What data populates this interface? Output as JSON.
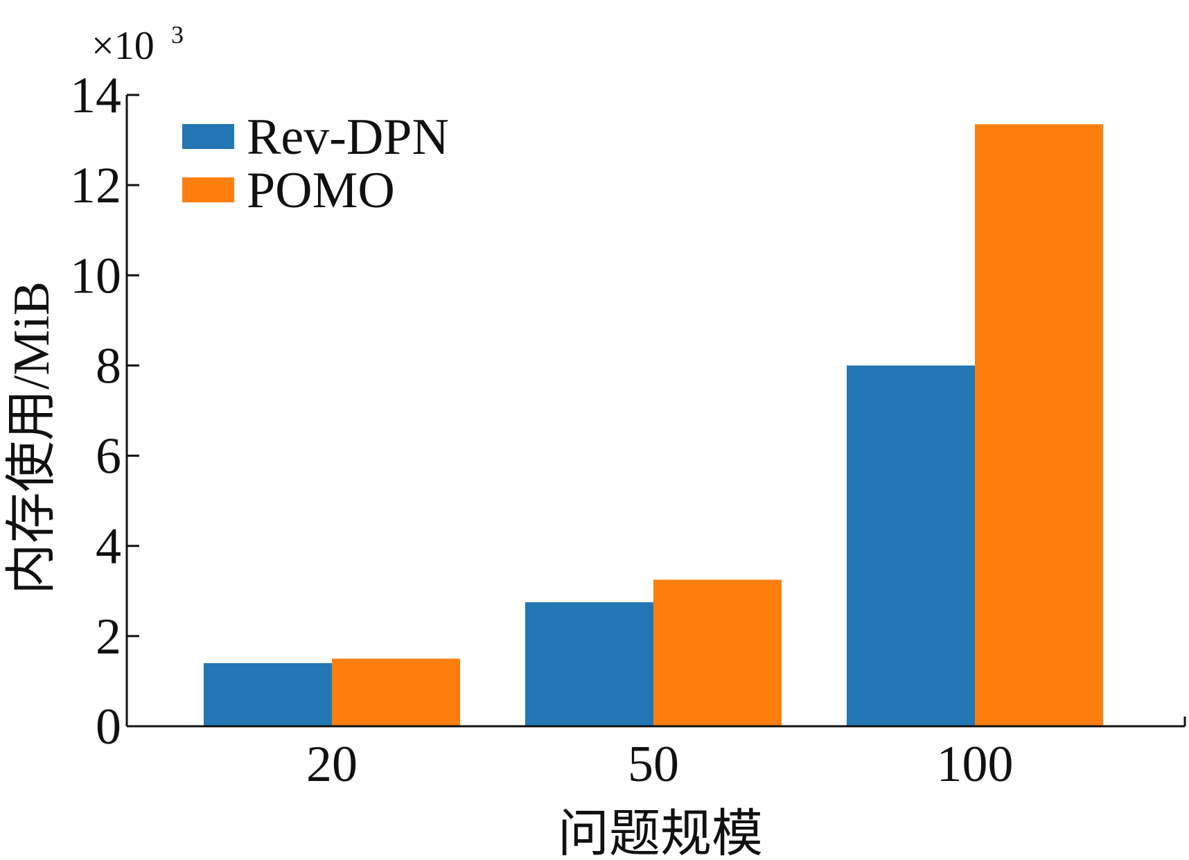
{
  "chart_data": {
    "type": "bar",
    "categories": [
      "20",
      "50",
      "100"
    ],
    "series": [
      {
        "name": "Rev-DPN",
        "color": "#2277b4",
        "values": [
          1.4,
          2.75,
          8.0
        ]
      },
      {
        "name": "POMO",
        "color": "#ff7f0e",
        "values": [
          1.5,
          3.25,
          13.35
        ]
      }
    ],
    "xlabel": "问题规模",
    "ylabel": "内存使用/MiB",
    "y_multiplier": {
      "base": "×10",
      "exponent": "3"
    },
    "ylim": [
      0,
      14
    ],
    "yticks": [
      0,
      2,
      4,
      6,
      8,
      10,
      12,
      14
    ],
    "legend_position": "top-left",
    "grid": false
  }
}
